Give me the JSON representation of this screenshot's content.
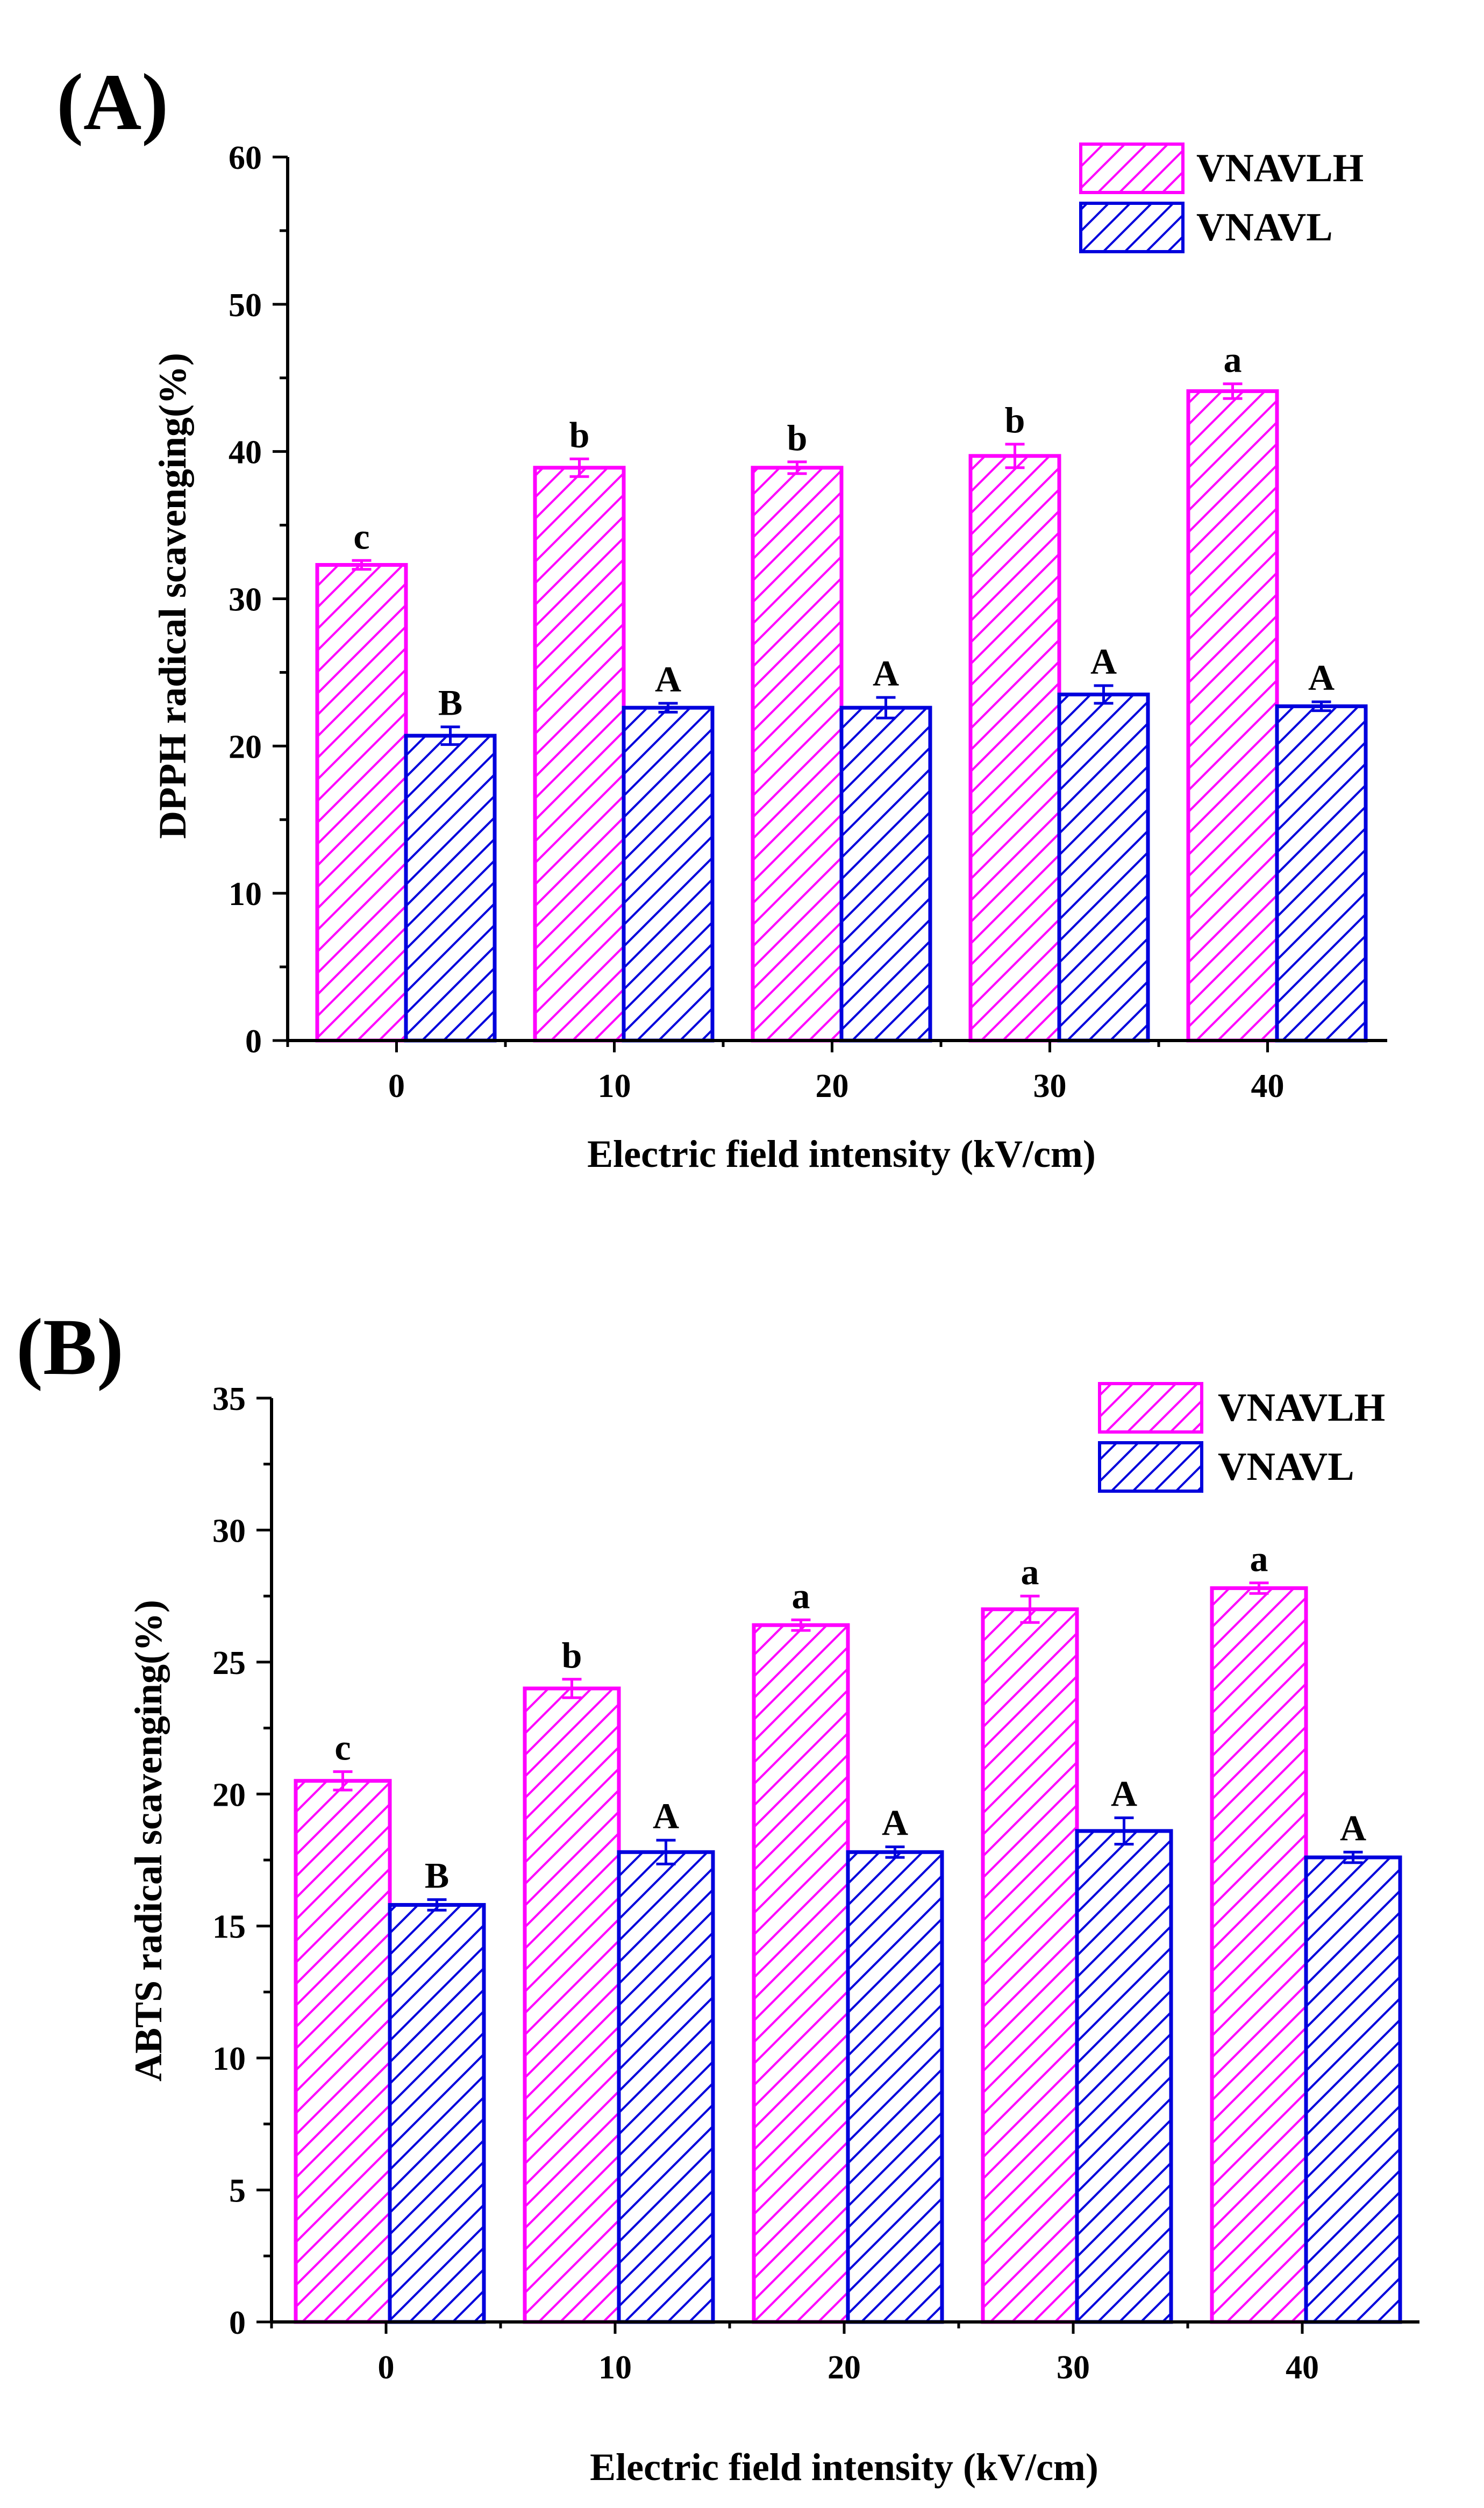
{
  "colors": {
    "series_a": "#ff00ff",
    "series_b": "#0000dd",
    "axis": "#000000"
  },
  "chart_data": [
    {
      "panel_label": "(A)",
      "type": "bar",
      "xlabel": "Electric field intensity (kV/cm)",
      "ylabel": "DPPH radical scavenging(%)",
      "ylim": [
        0,
        60
      ],
      "yticks": [
        "0",
        "10",
        "20",
        "30",
        "40",
        "50",
        "60"
      ],
      "categories": [
        "0",
        "10",
        "20",
        "30",
        "40"
      ],
      "legend_position": "top-right",
      "series": [
        {
          "name": "VNAVLH",
          "color": "#ff00ff",
          "values": [
            32.3,
            38.9,
            38.9,
            39.7,
            44.1
          ],
          "errors": [
            0.3,
            0.6,
            0.4,
            0.8,
            0.5
          ],
          "labels": [
            "c",
            "b",
            "b",
            "b",
            "a"
          ]
        },
        {
          "name": "VNAVL",
          "color": "#0000dd",
          "values": [
            20.7,
            22.6,
            22.6,
            23.5,
            22.7
          ],
          "errors": [
            0.6,
            0.3,
            0.7,
            0.6,
            0.3
          ],
          "labels": [
            "B",
            "A",
            "A",
            "A",
            "A"
          ]
        }
      ]
    },
    {
      "panel_label": "(B)",
      "type": "bar",
      "xlabel": "Electric field intensity (kV/cm)",
      "ylabel": "ABTS radical scavenging(%)",
      "ylim": [
        0,
        35
      ],
      "yticks": [
        "0",
        "5",
        "10",
        "15",
        "20",
        "25",
        "30",
        "35"
      ],
      "categories": [
        "0",
        "10",
        "20",
        "30",
        "40"
      ],
      "legend_position": "top-right",
      "series": [
        {
          "name": "VNAVLH",
          "color": "#ff00ff",
          "values": [
            20.5,
            24.0,
            26.4,
            27.0,
            27.8
          ],
          "errors": [
            0.35,
            0.35,
            0.2,
            0.5,
            0.2
          ],
          "labels": [
            "c",
            "b",
            "a",
            "a",
            "a"
          ]
        },
        {
          "name": "VNAVL",
          "color": "#0000dd",
          "values": [
            15.8,
            17.8,
            17.8,
            18.6,
            17.6
          ],
          "errors": [
            0.2,
            0.45,
            0.2,
            0.5,
            0.2
          ],
          "labels": [
            "B",
            "A",
            "A",
            "A",
            "A"
          ]
        }
      ]
    }
  ]
}
